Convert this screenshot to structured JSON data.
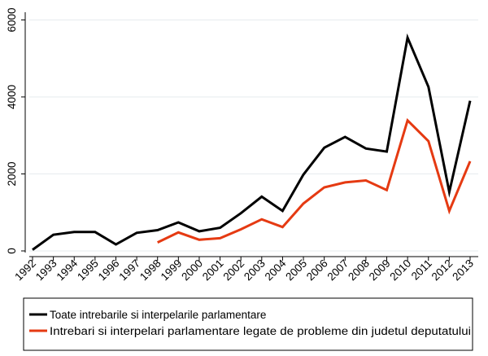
{
  "chart_data": {
    "type": "line",
    "x": [
      "1992",
      "1993",
      "1994",
      "1995",
      "1996",
      "1997",
      "1998",
      "1999",
      "2000",
      "2001",
      "2002",
      "2003",
      "2004",
      "2005",
      "2006",
      "2007",
      "2008",
      "2009",
      "2010",
      "2011",
      "2012",
      "2013"
    ],
    "series": [
      {
        "name": "Toate intrebarile si interpelarile parlamentare",
        "color": "#000000",
        "values": [
          30,
          420,
          490,
          490,
          170,
          470,
          540,
          740,
          510,
          600,
          980,
          1410,
          1040,
          1980,
          2680,
          2960,
          2660,
          2580,
          5540,
          4260,
          1530,
          3900
        ]
      },
      {
        "name": "Intrebari si interpelari parlamentare legate de probleme din judetul deputatului",
        "color": "#e53a12",
        "values": [
          null,
          null,
          null,
          null,
          null,
          null,
          220,
          480,
          290,
          330,
          560,
          820,
          620,
          1230,
          1650,
          1780,
          1830,
          1580,
          3390,
          2850,
          1040,
          2330
        ]
      }
    ],
    "y_ticks": [
      "0",
      "2000",
      "4000",
      "6000"
    ],
    "y_tick_values": [
      0,
      2000,
      4000,
      6000
    ],
    "ylim": [
      0,
      6200
    ],
    "xlabel": "",
    "ylabel": "",
    "title": "",
    "grid": true,
    "legend_position": "bottom"
  }
}
